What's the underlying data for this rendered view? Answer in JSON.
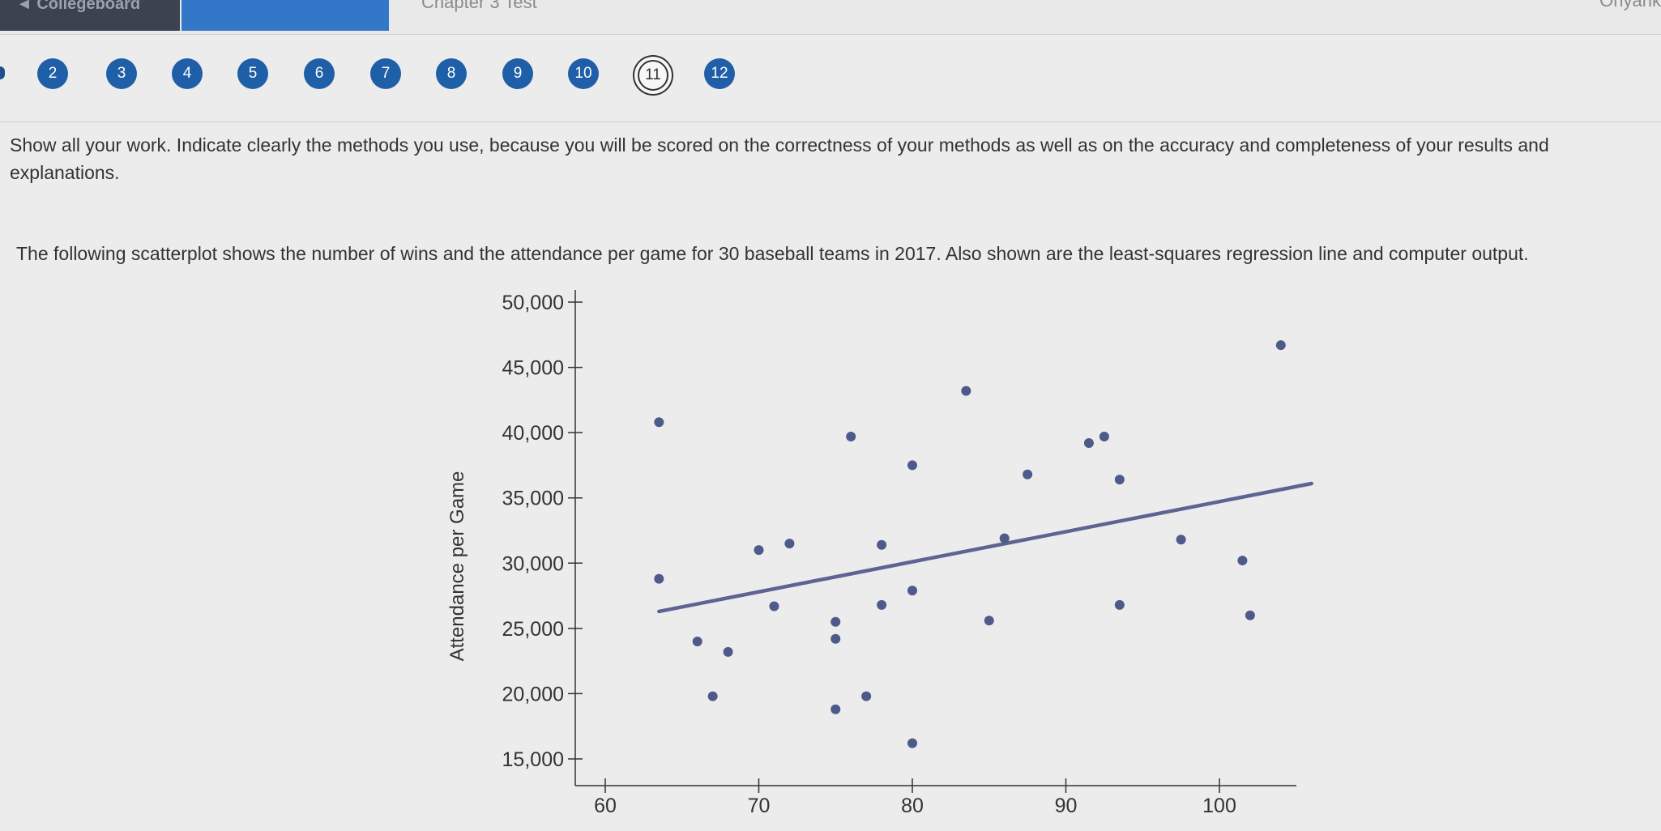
{
  "header": {
    "left_tab_text": "◄ Collegeboard",
    "title_text": "Chapter 3 Test",
    "user_text": "Onyank"
  },
  "question_nav": {
    "items": [
      "2",
      "3",
      "4",
      "5",
      "6",
      "7",
      "8",
      "9",
      "10",
      "11",
      "12"
    ],
    "current": "11"
  },
  "instructions": "Show all your work. Indicate clearly the methods you use, because you will be scored on the correctness of your methods as well as on the accuracy and completeness of your results and explanations.",
  "prompt": "The following scatterplot shows the number of wins and the attendance per game for 30 baseball teams in 2017. Also shown are the least-squares regression line and computer output.",
  "chart_data": {
    "type": "scatter",
    "xlabel": "",
    "ylabel": "Attendance per Game",
    "xlim": [
      58,
      104
    ],
    "ylim": [
      13500,
      50500
    ],
    "x_ticks": [
      60,
      70,
      80,
      90,
      100
    ],
    "x_tick_labels": [
      "60",
      "70",
      "80",
      "90",
      "100"
    ],
    "y_ticks": [
      15000,
      20000,
      25000,
      30000,
      35000,
      40000,
      45000,
      50000
    ],
    "y_tick_labels": [
      "15,000",
      "20,000",
      "25,000",
      "30,000",
      "35,000",
      "40,000",
      "45,000",
      "50,000"
    ],
    "points": [
      {
        "x": 63.5,
        "y": 40800
      },
      {
        "x": 63.5,
        "y": 28800
      },
      {
        "x": 66,
        "y": 24000
      },
      {
        "x": 67,
        "y": 19800
      },
      {
        "x": 68,
        "y": 23200
      },
      {
        "x": 70,
        "y": 31000
      },
      {
        "x": 71,
        "y": 26700
      },
      {
        "x": 72,
        "y": 31500
      },
      {
        "x": 75,
        "y": 25500
      },
      {
        "x": 75,
        "y": 24200
      },
      {
        "x": 75,
        "y": 18800
      },
      {
        "x": 76,
        "y": 39700
      },
      {
        "x": 77,
        "y": 19800
      },
      {
        "x": 78,
        "y": 31400
      },
      {
        "x": 78,
        "y": 26800
      },
      {
        "x": 80,
        "y": 37500
      },
      {
        "x": 80,
        "y": 27900
      },
      {
        "x": 80,
        "y": 16200
      },
      {
        "x": 83.5,
        "y": 43200
      },
      {
        "x": 85,
        "y": 25600
      },
      {
        "x": 86,
        "y": 31900
      },
      {
        "x": 87.5,
        "y": 36800
      },
      {
        "x": 91.5,
        "y": 39200
      },
      {
        "x": 92.5,
        "y": 39700
      },
      {
        "x": 93.5,
        "y": 26800
      },
      {
        "x": 93.5,
        "y": 36400
      },
      {
        "x": 97.5,
        "y": 31800
      },
      {
        "x": 101.5,
        "y": 30200
      },
      {
        "x": 102,
        "y": 26000
      },
      {
        "x": 104,
        "y": 46700
      }
    ],
    "regression_line": {
      "x": [
        63.5,
        106
      ],
      "y": [
        26300,
        36100
      ]
    },
    "grid": false,
    "colors": {
      "points": "#4e5a8a",
      "line": "#5e6392"
    }
  }
}
